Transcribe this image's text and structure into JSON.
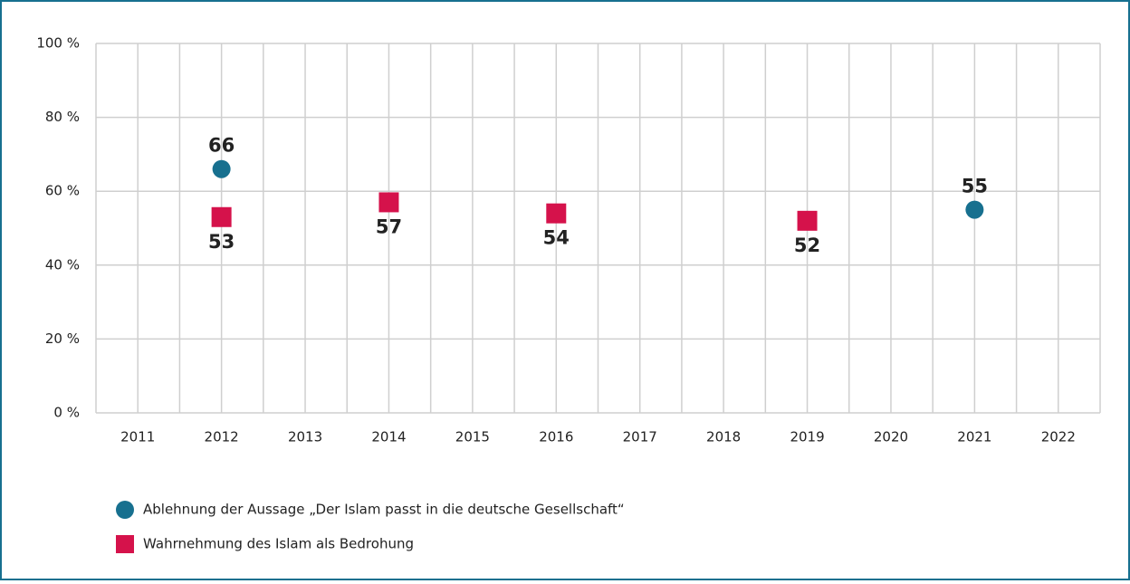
{
  "chart_data": {
    "type": "scatter",
    "categories": [
      "2011",
      "2012",
      "2013",
      "2014",
      "2015",
      "2016",
      "2017",
      "2018",
      "2019",
      "2020",
      "2021",
      "2022"
    ],
    "series": [
      {
        "name": "Ablehnung der Aussage „Der Islam passt in die deutsche Gesellschaft“",
        "color": "#17708f",
        "marker": "circle",
        "values": [
          null,
          66,
          null,
          null,
          null,
          null,
          null,
          null,
          null,
          null,
          55,
          null
        ]
      },
      {
        "name": "Wahrnehmung des Islam als Bedrohung",
        "color": "#d5124b",
        "marker": "square",
        "values": [
          null,
          53,
          null,
          57,
          null,
          54,
          null,
          null,
          52,
          null,
          null,
          null
        ]
      }
    ],
    "ylim": [
      0,
      100
    ],
    "yticks": [
      {
        "value": 0,
        "label": "0 %"
      },
      {
        "value": 20,
        "label": "20 %"
      },
      {
        "value": 40,
        "label": "40 %"
      },
      {
        "value": 60,
        "label": "60 %"
      },
      {
        "value": 80,
        "label": "80 %"
      },
      {
        "value": 100,
        "label": "100 %"
      }
    ],
    "grid": true
  }
}
